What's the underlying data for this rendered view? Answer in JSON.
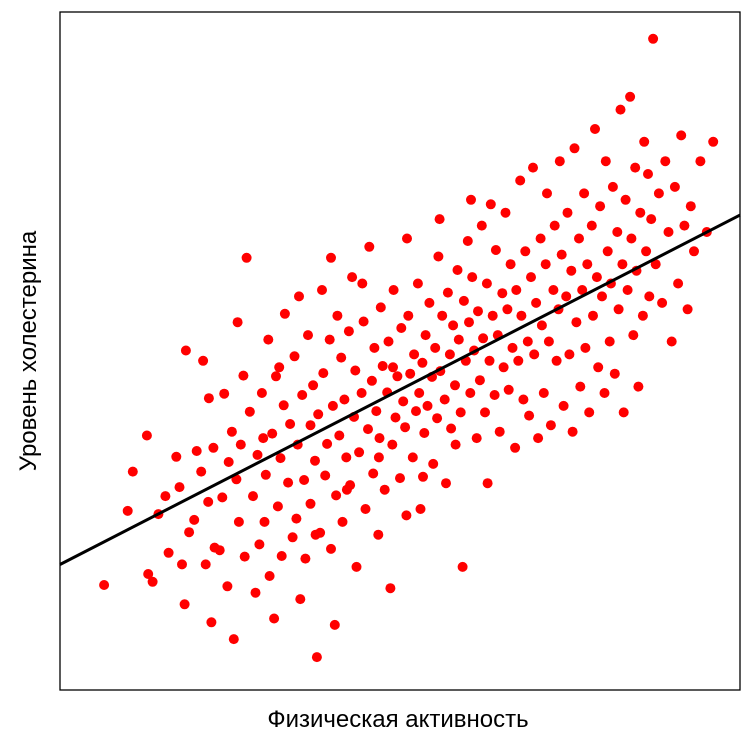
{
  "chart_data": {
    "type": "scatter",
    "title": "",
    "xlabel": "Физическая активность",
    "ylabel": "Уровень холестерина",
    "xlim": [
      0,
      1
    ],
    "ylim": [
      0,
      1
    ],
    "grid": false,
    "axes_ticks": false,
    "colors": {
      "points": "#ff0000",
      "line": "#000000"
    },
    "regression_line": {
      "x": [
        0,
        1
      ],
      "y": [
        0.19,
        0.7
      ]
    },
    "points_note_omitted": true,
    "points": [
      [
        0.037,
        0.142
      ],
      [
        0.082,
        0.318
      ],
      [
        0.104,
        0.374
      ],
      [
        0.106,
        0.159
      ],
      [
        0.113,
        0.147
      ],
      [
        0.122,
        0.252
      ],
      [
        0.133,
        0.28
      ],
      [
        0.15,
        0.341
      ],
      [
        0.155,
        0.294
      ],
      [
        0.159,
        0.174
      ],
      [
        0.163,
        0.112
      ],
      [
        0.165,
        0.506
      ],
      [
        0.17,
        0.224
      ],
      [
        0.178,
        0.243
      ],
      [
        0.182,
        0.35
      ],
      [
        0.189,
        0.318
      ],
      [
        0.192,
        0.49
      ],
      [
        0.196,
        0.174
      ],
      [
        0.2,
        0.271
      ],
      [
        0.205,
        0.084
      ],
      [
        0.208,
        0.355
      ],
      [
        0.21,
        0.2
      ],
      [
        0.218,
        0.196
      ],
      [
        0.222,
        0.278
      ],
      [
        0.225,
        0.439
      ],
      [
        0.23,
        0.14
      ],
      [
        0.232,
        0.333
      ],
      [
        0.237,
        0.38
      ],
      [
        0.24,
        0.058
      ],
      [
        0.244,
        0.306
      ],
      [
        0.248,
        0.24
      ],
      [
        0.251,
        0.36
      ],
      [
        0.255,
        0.467
      ],
      [
        0.257,
        0.186
      ],
      [
        0.26,
        0.65
      ],
      [
        0.265,
        0.411
      ],
      [
        0.27,
        0.28
      ],
      [
        0.274,
        0.13
      ],
      [
        0.277,
        0.344
      ],
      [
        0.28,
        0.205
      ],
      [
        0.284,
        0.44
      ],
      [
        0.288,
        0.24
      ],
      [
        0.29,
        0.313
      ],
      [
        0.294,
        0.523
      ],
      [
        0.296,
        0.156
      ],
      [
        0.3,
        0.377
      ],
      [
        0.303,
        0.09
      ],
      [
        0.306,
        0.466
      ],
      [
        0.309,
        0.264
      ],
      [
        0.313,
        0.339
      ],
      [
        0.315,
        0.187
      ],
      [
        0.318,
        0.421
      ],
      [
        0.32,
        0.563
      ],
      [
        0.325,
        0.301
      ],
      [
        0.328,
        0.392
      ],
      [
        0.332,
        0.216
      ],
      [
        0.335,
        0.497
      ],
      [
        0.338,
        0.245
      ],
      [
        0.34,
        0.36
      ],
      [
        0.344,
        0.12
      ],
      [
        0.347,
        0.437
      ],
      [
        0.35,
        0.305
      ],
      [
        0.352,
        0.183
      ],
      [
        0.356,
        0.53
      ],
      [
        0.36,
        0.39
      ],
      [
        0.36,
        0.268
      ],
      [
        0.364,
        0.452
      ],
      [
        0.367,
        0.335
      ],
      [
        0.37,
        0.03
      ],
      [
        0.372,
        0.407
      ],
      [
        0.375,
        0.223
      ],
      [
        0.378,
        0.6
      ],
      [
        0.38,
        0.471
      ],
      [
        0.383,
        0.312
      ],
      [
        0.386,
        0.361
      ],
      [
        0.39,
        0.523
      ],
      [
        0.392,
        0.198
      ],
      [
        0.395,
        0.42
      ],
      [
        0.398,
        0.08
      ],
      [
        0.4,
        0.281
      ],
      [
        0.402,
        0.56
      ],
      [
        0.405,
        0.374
      ],
      [
        0.408,
        0.495
      ],
      [
        0.41,
        0.24
      ],
      [
        0.413,
        0.43
      ],
      [
        0.416,
        0.34
      ],
      [
        0.42,
        0.536
      ],
      [
        0.422,
        0.297
      ],
      [
        0.425,
        0.62
      ],
      [
        0.428,
        0.403
      ],
      [
        0.43,
        0.475
      ],
      [
        0.432,
        0.17
      ],
      [
        0.436,
        0.348
      ],
      [
        0.44,
        0.44
      ],
      [
        0.443,
        0.551
      ],
      [
        0.446,
        0.26
      ],
      [
        0.45,
        0.384
      ],
      [
        0.452,
        0.667
      ],
      [
        0.456,
        0.459
      ],
      [
        0.458,
        0.315
      ],
      [
        0.46,
        0.51
      ],
      [
        0.463,
        0.412
      ],
      [
        0.466,
        0.22
      ],
      [
        0.468,
        0.37
      ],
      [
        0.47,
        0.573
      ],
      [
        0.473,
        0.482
      ],
      [
        0.476,
        0.29
      ],
      [
        0.48,
        0.441
      ],
      [
        0.482,
        0.52
      ],
      [
        0.485,
        0.137
      ],
      [
        0.488,
        0.36
      ],
      [
        0.49,
        0.6
      ],
      [
        0.493,
        0.402
      ],
      [
        0.496,
        0.466
      ],
      [
        0.5,
        0.308
      ],
      [
        0.502,
        0.541
      ],
      [
        0.505,
        0.427
      ],
      [
        0.508,
        0.387
      ],
      [
        0.51,
        0.25
      ],
      [
        0.513,
        0.56
      ],
      [
        0.516,
        0.47
      ],
      [
        0.52,
        0.34
      ],
      [
        0.522,
        0.5
      ],
      [
        0.525,
        0.412
      ],
      [
        0.528,
        0.61
      ],
      [
        0.53,
        0.44
      ],
      [
        0.532,
        0.26
      ],
      [
        0.535,
        0.487
      ],
      [
        0.538,
        0.378
      ],
      [
        0.54,
        0.53
      ],
      [
        0.543,
        0.42
      ],
      [
        0.546,
        0.58
      ],
      [
        0.55,
        0.465
      ],
      [
        0.552,
        0.33
      ],
      [
        0.555,
        0.51
      ],
      [
        0.558,
        0.401
      ],
      [
        0.56,
        0.652
      ],
      [
        0.563,
        0.474
      ],
      [
        0.566,
        0.56
      ],
      [
        0.57,
        0.43
      ],
      [
        0.572,
        0.3
      ],
      [
        0.575,
        0.596
      ],
      [
        0.578,
        0.5
      ],
      [
        0.58,
        0.385
      ],
      [
        0.583,
        0.545
      ],
      [
        0.586,
        0.452
      ],
      [
        0.59,
        0.631
      ],
      [
        0.592,
        0.523
      ],
      [
        0.595,
        0.41
      ],
      [
        0.598,
        0.17
      ],
      [
        0.6,
        0.583
      ],
      [
        0.603,
        0.49
      ],
      [
        0.606,
        0.676
      ],
      [
        0.608,
        0.55
      ],
      [
        0.61,
        0.44
      ],
      [
        0.613,
        0.62
      ],
      [
        0.616,
        0.506
      ],
      [
        0.62,
        0.37
      ],
      [
        0.622,
        0.567
      ],
      [
        0.625,
        0.46
      ],
      [
        0.628,
        0.7
      ],
      [
        0.63,
        0.525
      ],
      [
        0.633,
        0.41
      ],
      [
        0.636,
        0.61
      ],
      [
        0.64,
        0.49
      ],
      [
        0.642,
        0.733
      ],
      [
        0.645,
        0.56
      ],
      [
        0.648,
        0.437
      ],
      [
        0.65,
        0.662
      ],
      [
        0.653,
        0.53
      ],
      [
        0.656,
        0.38
      ],
      [
        0.66,
        0.595
      ],
      [
        0.662,
        0.48
      ],
      [
        0.665,
        0.72
      ],
      [
        0.668,
        0.57
      ],
      [
        0.67,
        0.445
      ],
      [
        0.673,
        0.64
      ],
      [
        0.676,
        0.51
      ],
      [
        0.68,
        0.355
      ],
      [
        0.682,
        0.6
      ],
      [
        0.685,
        0.49
      ],
      [
        0.688,
        0.77
      ],
      [
        0.69,
        0.56
      ],
      [
        0.693,
        0.43
      ],
      [
        0.696,
        0.66
      ],
      [
        0.7,
        0.52
      ],
      [
        0.702,
        0.405
      ],
      [
        0.705,
        0.62
      ],
      [
        0.708,
        0.79
      ],
      [
        0.71,
        0.5
      ],
      [
        0.713,
        0.58
      ],
      [
        0.716,
        0.37
      ],
      [
        0.72,
        0.68
      ],
      [
        0.722,
        0.545
      ],
      [
        0.725,
        0.44
      ],
      [
        0.728,
        0.64
      ],
      [
        0.73,
        0.75
      ],
      [
        0.733,
        0.52
      ],
      [
        0.736,
        0.39
      ],
      [
        0.74,
        0.6
      ],
      [
        0.742,
        0.7
      ],
      [
        0.745,
        0.49
      ],
      [
        0.748,
        0.57
      ],
      [
        0.75,
        0.8
      ],
      [
        0.753,
        0.655
      ],
      [
        0.756,
        0.42
      ],
      [
        0.76,
        0.59
      ],
      [
        0.762,
        0.72
      ],
      [
        0.765,
        0.5
      ],
      [
        0.768,
        0.63
      ],
      [
        0.77,
        0.38
      ],
      [
        0.773,
        0.82
      ],
      [
        0.776,
        0.55
      ],
      [
        0.78,
        0.68
      ],
      [
        0.782,
        0.45
      ],
      [
        0.785,
        0.6
      ],
      [
        0.788,
        0.75
      ],
      [
        0.79,
        0.51
      ],
      [
        0.793,
        0.64
      ],
      [
        0.796,
        0.41
      ],
      [
        0.8,
        0.7
      ],
      [
        0.802,
        0.56
      ],
      [
        0.805,
        0.85
      ],
      [
        0.808,
        0.62
      ],
      [
        0.81,
        0.48
      ],
      [
        0.813,
        0.73
      ],
      [
        0.816,
        0.59
      ],
      [
        0.82,
        0.44
      ],
      [
        0.822,
        0.8
      ],
      [
        0.825,
        0.66
      ],
      [
        0.828,
        0.52
      ],
      [
        0.83,
        0.61
      ],
      [
        0.833,
        0.76
      ],
      [
        0.836,
        0.47
      ],
      [
        0.84,
        0.69
      ],
      [
        0.842,
        0.57
      ],
      [
        0.845,
        0.88
      ],
      [
        0.848,
        0.64
      ],
      [
        0.85,
        0.41
      ],
      [
        0.853,
        0.74
      ],
      [
        0.856,
        0.6
      ],
      [
        0.86,
        0.9
      ],
      [
        0.862,
        0.68
      ],
      [
        0.865,
        0.53
      ],
      [
        0.868,
        0.79
      ],
      [
        0.87,
        0.63
      ],
      [
        0.873,
        0.45
      ],
      [
        0.876,
        0.72
      ],
      [
        0.88,
        0.56
      ],
      [
        0.882,
        0.83
      ],
      [
        0.885,
        0.66
      ],
      [
        0.888,
        0.78
      ],
      [
        0.89,
        0.59
      ],
      [
        0.893,
        0.71
      ],
      [
        0.896,
        0.99
      ],
      [
        0.9,
        0.64
      ],
      [
        0.905,
        0.75
      ],
      [
        0.91,
        0.58
      ],
      [
        0.915,
        0.8
      ],
      [
        0.92,
        0.69
      ],
      [
        0.925,
        0.52
      ],
      [
        0.93,
        0.76
      ],
      [
        0.935,
        0.61
      ],
      [
        0.94,
        0.84
      ],
      [
        0.945,
        0.7
      ],
      [
        0.95,
        0.57
      ],
      [
        0.955,
        0.73
      ],
      [
        0.96,
        0.66
      ],
      [
        0.97,
        0.8
      ],
      [
        0.98,
        0.69
      ],
      [
        0.99,
        0.83
      ],
      [
        0.074,
        0.257
      ],
      [
        0.138,
        0.192
      ],
      [
        0.201,
        0.432
      ],
      [
        0.246,
        0.55
      ],
      [
        0.286,
        0.37
      ],
      [
        0.311,
        0.48
      ],
      [
        0.342,
        0.59
      ],
      [
        0.368,
        0.22
      ],
      [
        0.392,
        0.65
      ],
      [
        0.417,
        0.29
      ],
      [
        0.441,
        0.61
      ],
      [
        0.467,
        0.34
      ],
      [
        0.489,
        0.48
      ],
      [
        0.511,
        0.68
      ],
      [
        0.536,
        0.31
      ],
      [
        0.562,
        0.71
      ],
      [
        0.587,
        0.36
      ],
      [
        0.611,
        0.74
      ],
      [
        0.637,
        0.3
      ]
    ]
  }
}
